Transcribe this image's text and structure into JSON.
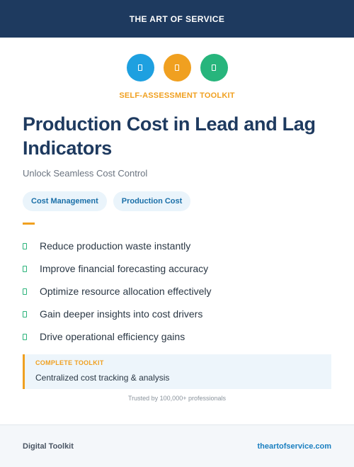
{
  "header": {
    "brand": "THE ART OF SERVICE"
  },
  "icons": [
    {
      "name": "document-icon",
      "color": "#1ea0e0"
    },
    {
      "name": "document-icon",
      "color": "#f0a020"
    },
    {
      "name": "document-icon",
      "color": "#27b57c"
    }
  ],
  "kicker": "SELF-ASSESSMENT TOOLKIT",
  "title": "Production Cost in Lead and Lag Indicators",
  "subtitle": "Unlock Seamless Cost Control",
  "tags": [
    "Cost Management",
    "Production Cost"
  ],
  "benefits": [
    "Reduce production waste instantly",
    "Improve financial forecasting accuracy",
    "Optimize resource allocation effectively",
    "Gain deeper insights into cost drivers",
    "Drive operational efficiency gains"
  ],
  "callout": {
    "tag": "COMPLETE TOOLKIT",
    "text": "Centralized cost tracking & analysis"
  },
  "trusted": "Trusted by 100,000+ professionals",
  "footer": {
    "left": "Digital Toolkit",
    "right": "theartofservice.com"
  },
  "colors": {
    "navy": "#1e3a5f",
    "accent": "#f0a020",
    "green": "#27b57c",
    "blue": "#1ea0e0"
  }
}
